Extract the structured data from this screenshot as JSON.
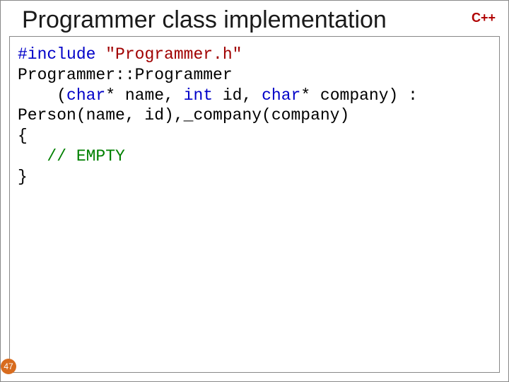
{
  "slide": {
    "title": "Programmer class implementation",
    "badge": "C++",
    "number": "47",
    "colors": {
      "title_color": "#1a1a1a",
      "badge_color": "#b00000",
      "border_color": "#888888",
      "slidenum_bg": "#d86c1e",
      "slidenum_fg": "#ffffff",
      "code_default": "#000000",
      "kw_blue": "#0000c8",
      "str_red": "#a00000",
      "comment_green": "#008000"
    },
    "code": {
      "line1_a": "#include ",
      "line1_b": "\"Programmer.h\"",
      "line2": "Programmer::Programmer",
      "line3_a": "    (",
      "line3_b": "char",
      "line3_c": "* name, ",
      "line3_d": "int",
      "line3_e": " id, ",
      "line3_f": "char",
      "line3_g": "* company) :",
      "line4": "Person(name, id),_company(company)",
      "line5": "{",
      "line6_a": "   ",
      "line6_b": "// EMPTY",
      "line7": "}"
    }
  }
}
